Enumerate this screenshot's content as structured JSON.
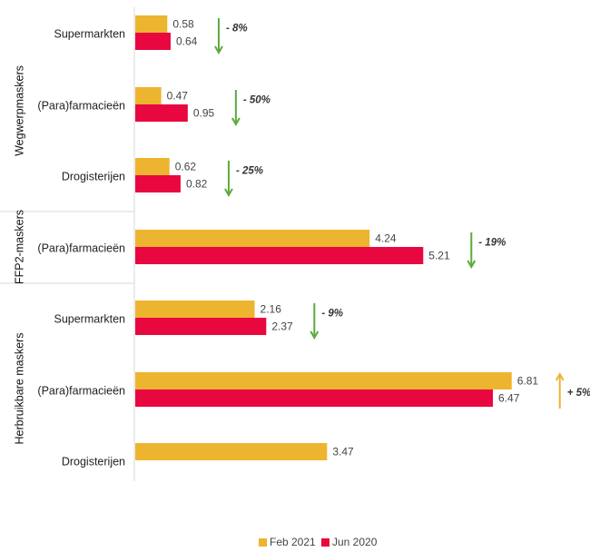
{
  "chart_data": {
    "type": "bar",
    "orientation": "horizontal",
    "series": [
      {
        "name": "Feb 2021",
        "color": "#EDB42F"
      },
      {
        "name": "Jun 2020",
        "color": "#E8073F"
      }
    ],
    "groups": [
      {
        "name": "Wegwerpmaskers",
        "rows": [
          {
            "category": "Supermarkten",
            "values": [
              0.58,
              0.64
            ],
            "labels": [
              "0.58",
              "0.64"
            ],
            "change": "- 8%",
            "direction": "down"
          },
          {
            "category": "(Para)farmacieën",
            "values": [
              0.47,
              0.95
            ],
            "labels": [
              "0.47",
              "0.95"
            ],
            "change": "- 50%",
            "direction": "down"
          },
          {
            "category": "Drogisterijen",
            "values": [
              0.62,
              0.82
            ],
            "labels": [
              "0.62",
              "0.82"
            ],
            "change": "- 25%",
            "direction": "down"
          }
        ]
      },
      {
        "name": "FFP2-maskers",
        "rows": [
          {
            "category": "(Para)farmacieën",
            "values": [
              4.24,
              5.21
            ],
            "labels": [
              "4.24",
              "5.21"
            ],
            "change": "- 19%",
            "direction": "down"
          }
        ]
      },
      {
        "name": "Herbruikbare maskers",
        "rows": [
          {
            "category": "Supermarkten",
            "values": [
              2.16,
              2.37
            ],
            "labels": [
              "2.16",
              "2.37"
            ],
            "change": "- 9%",
            "direction": "down"
          },
          {
            "category": "(Para)farmacieën",
            "values": [
              6.81,
              6.47
            ],
            "labels": [
              "6.81",
              "6.47"
            ],
            "change": "+ 5%",
            "direction": "up"
          },
          {
            "category": "Drogisterijen",
            "values": [
              3.47,
              null
            ],
            "labels": [
              "3.47",
              ""
            ],
            "change": "",
            "direction": ""
          }
        ]
      }
    ],
    "xlim": [
      0,
      7.3
    ],
    "grid": false,
    "legend_position": "bottom",
    "arrow_colors": {
      "down": "#5BAA3C",
      "up": "#EDB42F"
    }
  }
}
